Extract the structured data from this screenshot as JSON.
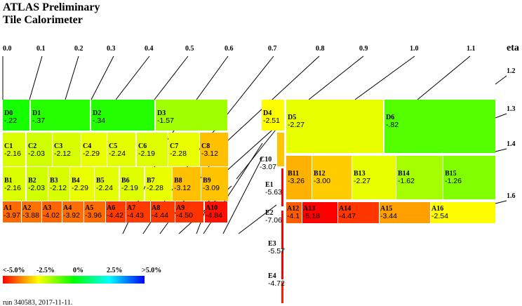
{
  "header": {
    "title_line1": "ATLAS Preliminary",
    "title_line2": "Tile Calorimeter"
  },
  "eta_axis": {
    "label": "eta",
    "labels": [
      "0.0",
      "0.1",
      "0.2",
      "0.3",
      "0.4",
      "0.5",
      "0.6",
      "0.7",
      "0.8",
      "0.9",
      "1.0",
      "1.1",
      "1.2",
      "1.3",
      "1.4",
      "1.6"
    ]
  },
  "cells": [
    {
      "name": "D0",
      "value": "-.22",
      "dev": -0.22
    },
    {
      "name": "D1",
      "value": "-.37",
      "dev": -0.37
    },
    {
      "name": "D2",
      "value": "-.34",
      "dev": -0.34
    },
    {
      "name": "D3",
      "value": "-1.57",
      "dev": -1.57
    },
    {
      "name": "C1",
      "value": "-2.16",
      "dev": -2.16
    },
    {
      "name": "C2",
      "value": "-2.03",
      "dev": -2.03
    },
    {
      "name": "C3",
      "value": "-2.12",
      "dev": -2.12
    },
    {
      "name": "C4",
      "value": "-2.29",
      "dev": -2.29
    },
    {
      "name": "C5",
      "value": "-2.24",
      "dev": -2.24
    },
    {
      "name": "C6",
      "value": "-2.19",
      "dev": -2.19
    },
    {
      "name": "C7",
      "value": "-2.28",
      "dev": -2.28
    },
    {
      "name": "C8",
      "value": "-3.12",
      "dev": -3.12
    },
    {
      "name": "B1",
      "value": "-2.16",
      "dev": -2.16
    },
    {
      "name": "B2",
      "value": "-2.03",
      "dev": -2.03
    },
    {
      "name": "B3",
      "value": "-2.12",
      "dev": -2.12
    },
    {
      "name": "B4",
      "value": "-2.29",
      "dev": -2.29
    },
    {
      "name": "B5",
      "value": "-2.24",
      "dev": -2.24
    },
    {
      "name": "B6",
      "value": "-2.19",
      "dev": -2.19
    },
    {
      "name": "B7",
      "value": "-2.28",
      "dev": -2.28
    },
    {
      "name": "B8",
      "value": "-3.12",
      "dev": -3.12
    },
    {
      "name": "B9",
      "value": "-3.09",
      "dev": -3.09
    },
    {
      "name": "A1",
      "value": "-3.97",
      "dev": -3.97
    },
    {
      "name": "A2",
      "value": "-3.88",
      "dev": -3.88
    },
    {
      "name": "A3",
      "value": "-4.02",
      "dev": -4.02
    },
    {
      "name": "A4",
      "value": "-3.92",
      "dev": -3.92
    },
    {
      "name": "A5",
      "value": "-3.96",
      "dev": -3.96
    },
    {
      "name": "A6",
      "value": "-4.42",
      "dev": -4.42
    },
    {
      "name": "A7",
      "value": "-4.43",
      "dev": -4.43
    },
    {
      "name": "A8",
      "value": "-4.44",
      "dev": -4.44
    },
    {
      "name": "A9",
      "value": "-4.50",
      "dev": -4.5
    },
    {
      "name": "A10",
      "value": "-4.84",
      "dev": -4.84
    },
    {
      "name": "D4",
      "value": "-2.51",
      "dev": -2.51
    },
    {
      "name": "C10",
      "value": "-3.07",
      "dev": -3.07
    },
    {
      "name": "D5",
      "value": "-2.27",
      "dev": -2.27
    },
    {
      "name": "D6",
      "value": "-.82",
      "dev": -0.82
    },
    {
      "name": "B11",
      "value": "-3.26",
      "dev": -3.26
    },
    {
      "name": "B12",
      "value": "-3.00",
      "dev": -3.0
    },
    {
      "name": "B13",
      "value": "-2.27",
      "dev": -2.27
    },
    {
      "name": "B14",
      "value": "-1.62",
      "dev": -1.62
    },
    {
      "name": "B15",
      "value": "-1.26",
      "dev": -1.26
    },
    {
      "name": "A12",
      "value": "-4.1",
      "dev": -4.1
    },
    {
      "name": "A13",
      "value": "-5.18",
      "dev": -5.18
    },
    {
      "name": "A14",
      "value": "-4.47",
      "dev": -4.47
    },
    {
      "name": "A15",
      "value": "-3.44",
      "dev": -3.44
    },
    {
      "name": "A16",
      "value": "-2.54",
      "dev": -2.54
    },
    {
      "name": "E1",
      "value": "-5.63",
      "dev": -5.63
    },
    {
      "name": "E2",
      "value": "-7.06",
      "dev": -7.06
    },
    {
      "name": "E3",
      "value": "-5.57",
      "dev": -5.57
    },
    {
      "name": "E4",
      "value": "-4.72",
      "dev": -4.72
    }
  ],
  "scale": {
    "labels": [
      "<-5.0%",
      "-2.5%",
      "0%",
      "2.5%",
      ">5.0%"
    ],
    "min": -5.0,
    "max": 5.0
  },
  "footer": {
    "run": "run 340583, 2017-11-11."
  }
}
